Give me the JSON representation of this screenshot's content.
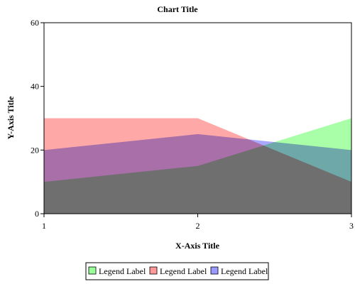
{
  "chart_data": {
    "type": "area",
    "title": "Chart Title",
    "xlabel": "X-Axis Title",
    "ylabel": "Y-Axis Title",
    "x": [
      1,
      2,
      3
    ],
    "x_ticks": [
      "1",
      "2",
      "3"
    ],
    "ylim": [
      0,
      60
    ],
    "y_ticks": [
      "0",
      "20",
      "40",
      "60"
    ],
    "grid": false,
    "legend_position": "bottom",
    "series": [
      {
        "name": "Legend Label",
        "values": [
          10,
          15,
          30
        ],
        "color": "#99ff99"
      },
      {
        "name": "Legend Label",
        "values": [
          30,
          30,
          10
        ],
        "color": "#ff9999"
      },
      {
        "name": "Legend Label",
        "values": [
          20,
          25,
          20
        ],
        "color": "#9999ff"
      }
    ]
  }
}
